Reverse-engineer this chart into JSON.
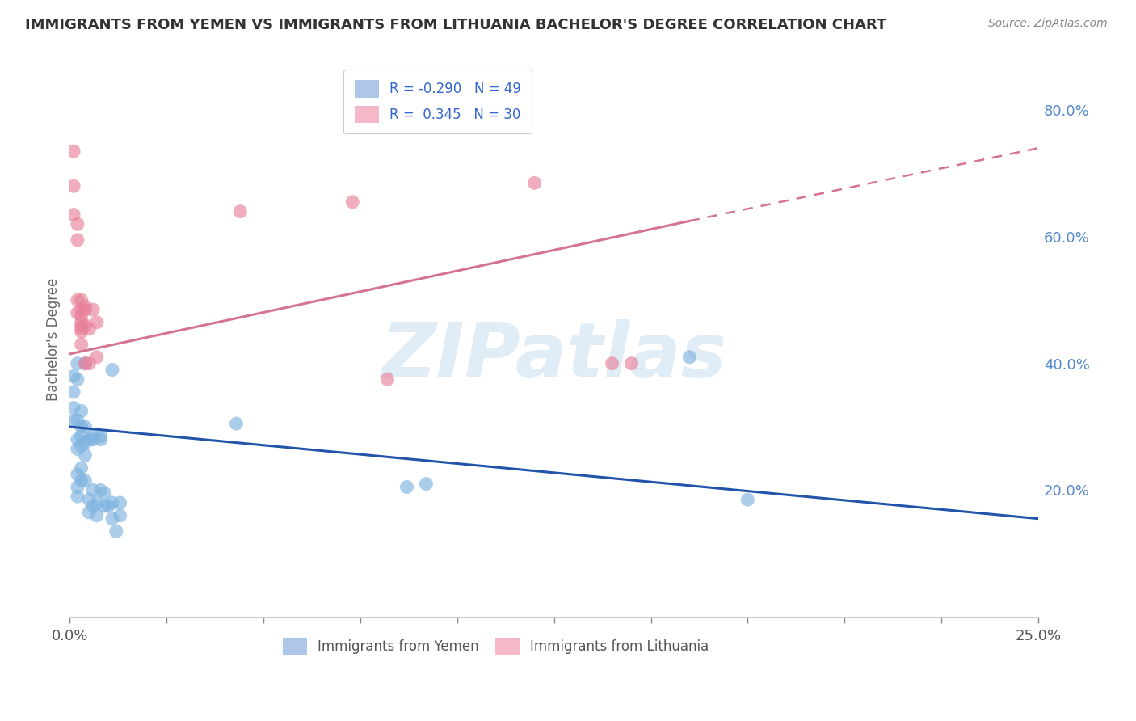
{
  "title": "IMMIGRANTS FROM YEMEN VS IMMIGRANTS FROM LITHUANIA BACHELOR'S DEGREE CORRELATION CHART",
  "source": "Source: ZipAtlas.com",
  "ylabel": "Bachelor's Degree",
  "legend_entries": [
    {
      "label": "R = -0.290   N = 49",
      "color": "#aec6e8"
    },
    {
      "label": "R =  0.345   N = 30",
      "color": "#f4b8c8"
    }
  ],
  "legend_bottom": [
    "Immigrants from Yemen",
    "Immigrants from Lithuania"
  ],
  "blue_scatter": [
    [
      0.001,
      0.38
    ],
    [
      0.001,
      0.355
    ],
    [
      0.001,
      0.33
    ],
    [
      0.001,
      0.31
    ],
    [
      0.002,
      0.4
    ],
    [
      0.002,
      0.375
    ],
    [
      0.002,
      0.31
    ],
    [
      0.002,
      0.28
    ],
    [
      0.002,
      0.265
    ],
    [
      0.002,
      0.225
    ],
    [
      0.002,
      0.205
    ],
    [
      0.002,
      0.19
    ],
    [
      0.003,
      0.325
    ],
    [
      0.003,
      0.3
    ],
    [
      0.003,
      0.285
    ],
    [
      0.003,
      0.27
    ],
    [
      0.003,
      0.235
    ],
    [
      0.003,
      0.215
    ],
    [
      0.004,
      0.4
    ],
    [
      0.004,
      0.3
    ],
    [
      0.004,
      0.275
    ],
    [
      0.004,
      0.255
    ],
    [
      0.004,
      0.215
    ],
    [
      0.005,
      0.28
    ],
    [
      0.005,
      0.185
    ],
    [
      0.005,
      0.165
    ],
    [
      0.006,
      0.285
    ],
    [
      0.006,
      0.28
    ],
    [
      0.006,
      0.2
    ],
    [
      0.006,
      0.175
    ],
    [
      0.007,
      0.18
    ],
    [
      0.007,
      0.16
    ],
    [
      0.008,
      0.285
    ],
    [
      0.008,
      0.28
    ],
    [
      0.008,
      0.2
    ],
    [
      0.009,
      0.195
    ],
    [
      0.009,
      0.175
    ],
    [
      0.01,
      0.175
    ],
    [
      0.011,
      0.39
    ],
    [
      0.011,
      0.18
    ],
    [
      0.011,
      0.155
    ],
    [
      0.012,
      0.135
    ],
    [
      0.013,
      0.18
    ],
    [
      0.013,
      0.16
    ],
    [
      0.043,
      0.305
    ],
    [
      0.087,
      0.205
    ],
    [
      0.092,
      0.21
    ],
    [
      0.16,
      0.41
    ],
    [
      0.175,
      0.185
    ]
  ],
  "pink_scatter": [
    [
      0.001,
      0.735
    ],
    [
      0.001,
      0.68
    ],
    [
      0.001,
      0.635
    ],
    [
      0.002,
      0.62
    ],
    [
      0.002,
      0.595
    ],
    [
      0.002,
      0.5
    ],
    [
      0.002,
      0.48
    ],
    [
      0.003,
      0.5
    ],
    [
      0.003,
      0.485
    ],
    [
      0.003,
      0.475
    ],
    [
      0.003,
      0.465
    ],
    [
      0.003,
      0.46
    ],
    [
      0.003,
      0.455
    ],
    [
      0.003,
      0.45
    ],
    [
      0.003,
      0.43
    ],
    [
      0.004,
      0.49
    ],
    [
      0.004,
      0.485
    ],
    [
      0.004,
      0.46
    ],
    [
      0.004,
      0.4
    ],
    [
      0.005,
      0.455
    ],
    [
      0.005,
      0.4
    ],
    [
      0.006,
      0.485
    ],
    [
      0.007,
      0.465
    ],
    [
      0.007,
      0.41
    ],
    [
      0.044,
      0.64
    ],
    [
      0.073,
      0.655
    ],
    [
      0.082,
      0.375
    ],
    [
      0.12,
      0.685
    ],
    [
      0.14,
      0.4
    ],
    [
      0.145,
      0.4
    ]
  ],
  "blue_line": {
    "x": [
      0.0,
      0.25
    ],
    "y": [
      0.3,
      0.155
    ]
  },
  "pink_line_solid": {
    "x": [
      0.0,
      0.16
    ],
    "y": [
      0.415,
      0.625
    ]
  },
  "pink_line_dashed": {
    "x": [
      0.16,
      0.25
    ],
    "y": [
      0.625,
      0.74
    ]
  },
  "xlim": [
    0.0,
    0.25
  ],
  "ylim": [
    0.0,
    0.875
  ],
  "ylim_top_line": 0.86,
  "blue_color": "#7eb3e0",
  "pink_color": "#e8829a",
  "blue_line_color": "#2255aa",
  "pink_line_color": "#d4748e",
  "watermark": "ZIPatlas",
  "watermark_color": "#c8ddf0",
  "background_color": "#ffffff",
  "grid_color": "#cccccc",
  "y_ticks": [
    0.2,
    0.4,
    0.6,
    0.8
  ],
  "x_tick_count": 11
}
